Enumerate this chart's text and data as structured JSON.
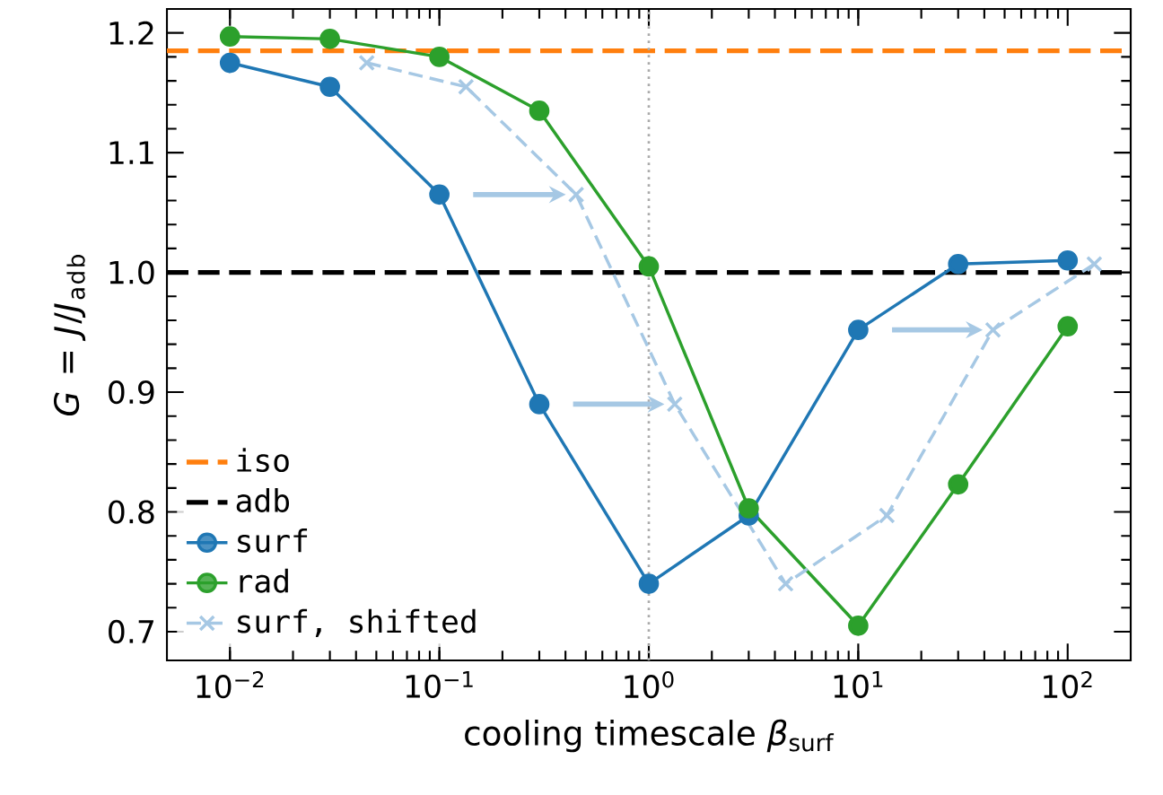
{
  "chart_data": {
    "type": "line",
    "xlabel": "cooling timescale *β*$_{surf}$",
    "ylabel": "*G* = *J*/*J*$_{adb}$",
    "log": "x",
    "xlim": [
      0.005,
      200
    ],
    "ylim": [
      0.676,
      1.22
    ],
    "xticks": [
      {
        "value": 0.01,
        "label": "10$^{−2}$"
      },
      {
        "value": 0.1,
        "label": "10$^{−1}$"
      },
      {
        "value": 1,
        "label": "10$^{0}$"
      },
      {
        "value": 10,
        "label": "10$^{1}$"
      },
      {
        "value": 100,
        "label": "10$^{2}$"
      }
    ],
    "yticks": [
      0.7,
      0.8,
      0.9,
      {
        "value": 1.0,
        "label": "1.0"
      },
      1.1,
      1.2
    ],
    "grid": false,
    "legend": "bottom left",
    "ref_lines": [
      {
        "axis": "y",
        "value": 1.185,
        "label": "iso",
        "color": "#ff7f0e",
        "line_style": "dashed"
      },
      {
        "axis": "y",
        "value": 1.0,
        "label": "adb",
        "color": "#000000",
        "line_style": "dashed"
      },
      {
        "axis": "x",
        "value": 1,
        "color": "#aaaaaa",
        "line_style": "dotted"
      }
    ],
    "series": [
      {
        "name": "surf",
        "color": "#1f77b4",
        "marker": "circle",
        "line_style": "solid",
        "x": [
          0.01,
          0.03,
          0.1,
          0.3,
          1,
          3,
          10,
          30,
          100
        ],
        "values": [
          1.175,
          1.155,
          1.065,
          0.89,
          0.74,
          0.797,
          0.952,
          1.007,
          1.01
        ]
      },
      {
        "name": "rad",
        "color": "#2ca02c",
        "marker": "circle",
        "line_style": "solid",
        "x": [
          0.01,
          0.03,
          0.1,
          0.3,
          1,
          3,
          10,
          30,
          100
        ],
        "values": [
          1.197,
          1.195,
          1.18,
          1.135,
          1.005,
          0.803,
          0.705,
          0.823,
          0.955
        ]
      },
      {
        "name": "surf, shifted",
        "color": "#a6c8e4",
        "marker": "cross",
        "line_style": "dashed",
        "x": [
          0.045,
          0.134,
          0.45,
          1.33,
          4.5,
          13.7,
          44,
          134
        ],
        "values": [
          1.175,
          1.155,
          1.065,
          0.89,
          0.74,
          0.797,
          0.952,
          1.007
        ]
      }
    ]
  }
}
